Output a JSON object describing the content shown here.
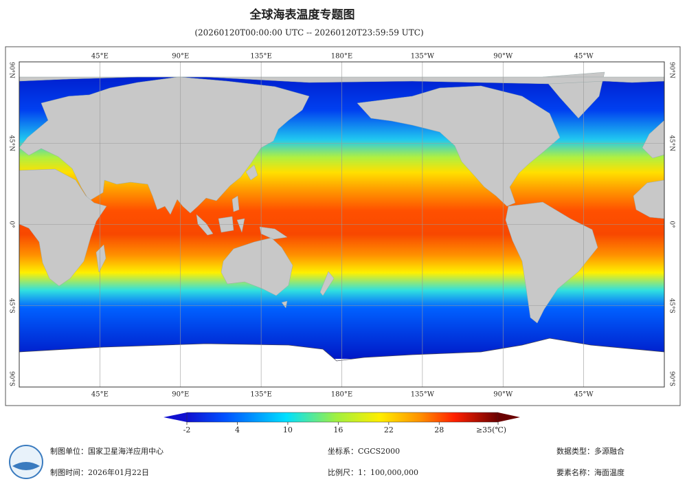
{
  "title": "全球海表温度专题图",
  "subtitle": "(20260120T00:00:00 UTC -- 20260120T23:59:59 UTC)",
  "map": {
    "xlim": [
      0,
      360
    ],
    "ylim": [
      90,
      -90
    ],
    "lonticks": [
      {
        "value": 45,
        "label": "45°E"
      },
      {
        "value": 90,
        "label": "90°E"
      },
      {
        "value": 135,
        "label": "135°E"
      },
      {
        "value": 180,
        "label": "180°E"
      },
      {
        "value": 225,
        "label": "135°W"
      },
      {
        "value": 270,
        "label": "90°W"
      },
      {
        "value": 315,
        "label": "45°W"
      }
    ],
    "latticks": [
      {
        "value": 90,
        "label": "90°N"
      },
      {
        "value": 45,
        "label": "45°N"
      },
      {
        "value": 0,
        "label": "0°"
      },
      {
        "value": -45,
        "label": "45°S"
      },
      {
        "value": -90,
        "label": "90°S"
      }
    ]
  },
  "colorbar": {
    "range": [
      -2,
      35
    ],
    "ticks": [
      -2,
      4,
      10,
      16,
      22,
      28,
      {
        "value": 35,
        "label": "≥35(℃)"
      }
    ]
  },
  "footer": {
    "unit": "制图单位：国家卫星海洋应用中心",
    "date": "制图时间：2026年01月22日",
    "crs": "坐标系：CGCS2000",
    "scale": "比例尺：1：100,000,000",
    "data_type": "数据类型：多源融合",
    "element": "要素名称：海面温度"
  }
}
